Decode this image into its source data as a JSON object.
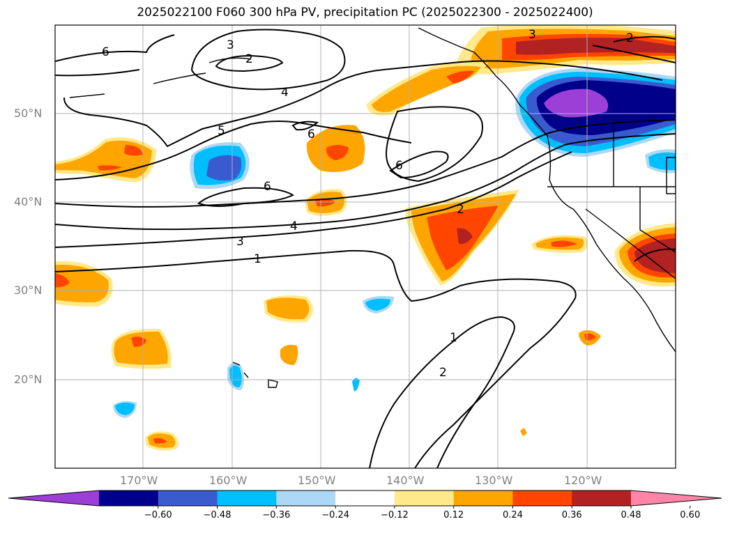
{
  "title": "2025022100 F060 300 hPa PV, precipitation PC (2025022300 - 2025022400)",
  "lat_labels": [
    "50°N",
    "40°N",
    "30°N",
    "20°N"
  ],
  "lon_labels": [
    "170°W",
    "160°W",
    "150°W",
    "140°W",
    "130°W",
    "120°W"
  ],
  "contour_labels": [
    "6",
    "3",
    "2",
    "4",
    "5",
    "6",
    "6",
    "6",
    "4",
    "3",
    "1",
    "2",
    "3",
    "2",
    "1",
    "2"
  ],
  "colorbar": {
    "ticks": [
      "−0.60",
      "−0.48",
      "−0.36",
      "−0.24",
      "−0.12",
      "0.12",
      "0.24",
      "0.36",
      "0.48",
      "0.60"
    ],
    "colors": [
      "#9b3fd6",
      "#00008b",
      "#3a5bd0",
      "#00bfff",
      "#add8f5",
      "#ffffff",
      "#ffe98a",
      "#ffa500",
      "#ff4500",
      "#b22222",
      "#ff85a8"
    ]
  },
  "colors": {
    "neg_extreme": "#9b3fd6",
    "neg_high": "#00008b",
    "neg_mid": "#3a5bd0",
    "neg_low": "#00bfff",
    "neg_faint": "#add8f5",
    "pos_faint": "#ffe98a",
    "pos_low": "#ffa500",
    "pos_mid": "#ff4500",
    "pos_high": "#b22222",
    "pos_extreme": "#ff85a8",
    "grid": "#b0b0b0",
    "tick_label": "#808080"
  }
}
